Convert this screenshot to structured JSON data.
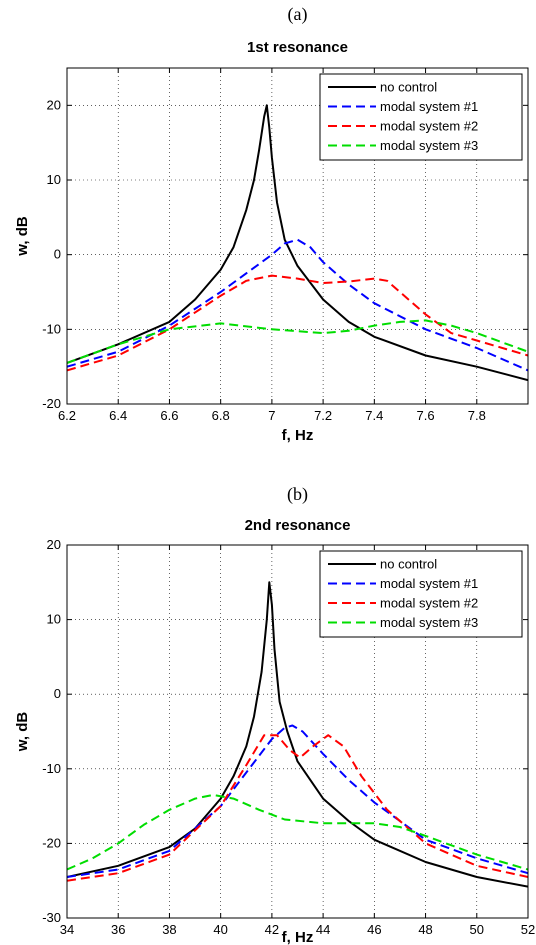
{
  "panels": [
    {
      "panel_label": "(a)",
      "chart_data": {
        "type": "line",
        "title": "1st resonance",
        "xlabel": "f, Hz",
        "ylabel": "w, dB",
        "xlim": [
          6.2,
          8.0
        ],
        "ylim": [
          -20,
          25
        ],
        "xticks": [
          6.2,
          6.4,
          6.6,
          6.8,
          7,
          7.2,
          7.4,
          7.6,
          7.8
        ],
        "yticks": [
          -20,
          -10,
          0,
          10,
          20
        ],
        "grid": true,
        "legend_position": "top-right",
        "series": [
          {
            "name": "no control",
            "color": "#000000",
            "dash": "solid",
            "x": [
              6.2,
              6.4,
              6.6,
              6.7,
              6.8,
              6.85,
              6.9,
              6.93,
              6.95,
              6.97,
              6.98,
              6.99,
              7.0,
              7.02,
              7.05,
              7.1,
              7.2,
              7.3,
              7.4,
              7.6,
              7.8,
              8.0
            ],
            "y": [
              -14.5,
              -12,
              -9,
              -6,
              -2,
              1,
              6,
              10,
              14,
              18.5,
              20,
              17,
              13,
              7,
              2,
              -1.5,
              -6,
              -9,
              -11,
              -13.5,
              -15,
              -16.8
            ]
          },
          {
            "name": "modal system #1",
            "color": "#0000ff",
            "dash": "dashed",
            "x": [
              6.2,
              6.4,
              6.6,
              6.8,
              6.9,
              7.0,
              7.05,
              7.1,
              7.15,
              7.2,
              7.3,
              7.4,
              7.6,
              7.8,
              8.0
            ],
            "y": [
              -15,
              -13,
              -9.5,
              -5,
              -2.5,
              0,
              1.5,
              2,
              1,
              -1,
              -4,
              -6.5,
              -10,
              -12.5,
              -15.5
            ]
          },
          {
            "name": "modal system #2",
            "color": "#ff0000",
            "dash": "dashed",
            "x": [
              6.2,
              6.4,
              6.6,
              6.8,
              6.9,
              7.0,
              7.1,
              7.2,
              7.3,
              7.4,
              7.45,
              7.5,
              7.6,
              7.7,
              7.8,
              8.0
            ],
            "y": [
              -15.5,
              -13.5,
              -10,
              -5.5,
              -3.5,
              -2.8,
              -3.2,
              -3.8,
              -3.6,
              -3.2,
              -3.5,
              -5,
              -8,
              -10.5,
              -11.5,
              -13.5
            ]
          },
          {
            "name": "modal system #3",
            "color": "#00dd00",
            "dash": "dashed",
            "x": [
              6.2,
              6.4,
              6.6,
              6.8,
              7.0,
              7.2,
              7.3,
              7.4,
              7.5,
              7.6,
              7.7,
              7.8,
              8.0
            ],
            "y": [
              -14.5,
              -12,
              -10,
              -9.2,
              -10,
              -10.5,
              -10.2,
              -9.5,
              -9,
              -8.8,
              -9.5,
              -10.5,
              -13
            ]
          }
        ]
      }
    },
    {
      "panel_label": "(b)",
      "chart_data": {
        "type": "line",
        "title": "2nd resonance",
        "xlabel": "f, Hz",
        "ylabel": "w, dB",
        "xlim": [
          34,
          52
        ],
        "ylim": [
          -30,
          20
        ],
        "xticks": [
          34,
          36,
          38,
          40,
          42,
          44,
          46,
          48,
          50,
          52
        ],
        "yticks": [
          -30,
          -20,
          -10,
          0,
          10,
          20
        ],
        "grid": true,
        "legend_position": "top-right",
        "series": [
          {
            "name": "no control",
            "color": "#000000",
            "dash": "solid",
            "x": [
              34,
              36,
              38,
              39,
              40,
              40.5,
              41,
              41.3,
              41.6,
              41.8,
              41.9,
              42.0,
              42.1,
              42.3,
              42.6,
              43,
              44,
              45,
              46,
              48,
              50,
              52
            ],
            "y": [
              -24.5,
              -23,
              -20.5,
              -18,
              -14,
              -11,
              -7,
              -3,
              3,
              10,
              15,
              12,
              6,
              -1,
              -5,
              -9,
              -14,
              -17,
              -19.5,
              -22.5,
              -24.5,
              -25.8
            ]
          },
          {
            "name": "modal system #1",
            "color": "#0000ff",
            "dash": "dashed",
            "x": [
              34,
              36,
              38,
              40,
              41,
              42,
              42.5,
              42.8,
              43.2,
              44,
              45,
              46,
              48,
              50,
              52
            ],
            "y": [
              -24.5,
              -23.5,
              -21,
              -15,
              -10.5,
              -6,
              -4.5,
              -4.2,
              -5,
              -8,
              -11.5,
              -14.5,
              -19.5,
              -22,
              -24
            ]
          },
          {
            "name": "modal system #2",
            "color": "#ff0000",
            "dash": "dashed",
            "x": [
              34,
              36,
              38,
              40,
              41,
              41.7,
              42.2,
              42.7,
              43.1,
              43.6,
              44.2,
              44.8,
              45.5,
              46.5,
              48,
              50,
              52
            ],
            "y": [
              -25,
              -24,
              -21.5,
              -15,
              -9.5,
              -5.5,
              -5.5,
              -7.5,
              -8.5,
              -7,
              -5.5,
              -7,
              -11,
              -15.5,
              -20,
              -23,
              -24.5
            ]
          },
          {
            "name": "modal system #3",
            "color": "#00dd00",
            "dash": "dashed",
            "x": [
              34,
              35,
              36,
              37,
              38,
              39,
              39.7,
              40.5,
              41.5,
              42.5,
              44,
              46,
              47,
              48,
              50,
              52
            ],
            "y": [
              -23.5,
              -22,
              -20,
              -17.5,
              -15.5,
              -14,
              -13.5,
              -14,
              -15.5,
              -16.8,
              -17.3,
              -17.3,
              -17.8,
              -19,
              -21.5,
              -23.5
            ]
          }
        ]
      }
    }
  ]
}
